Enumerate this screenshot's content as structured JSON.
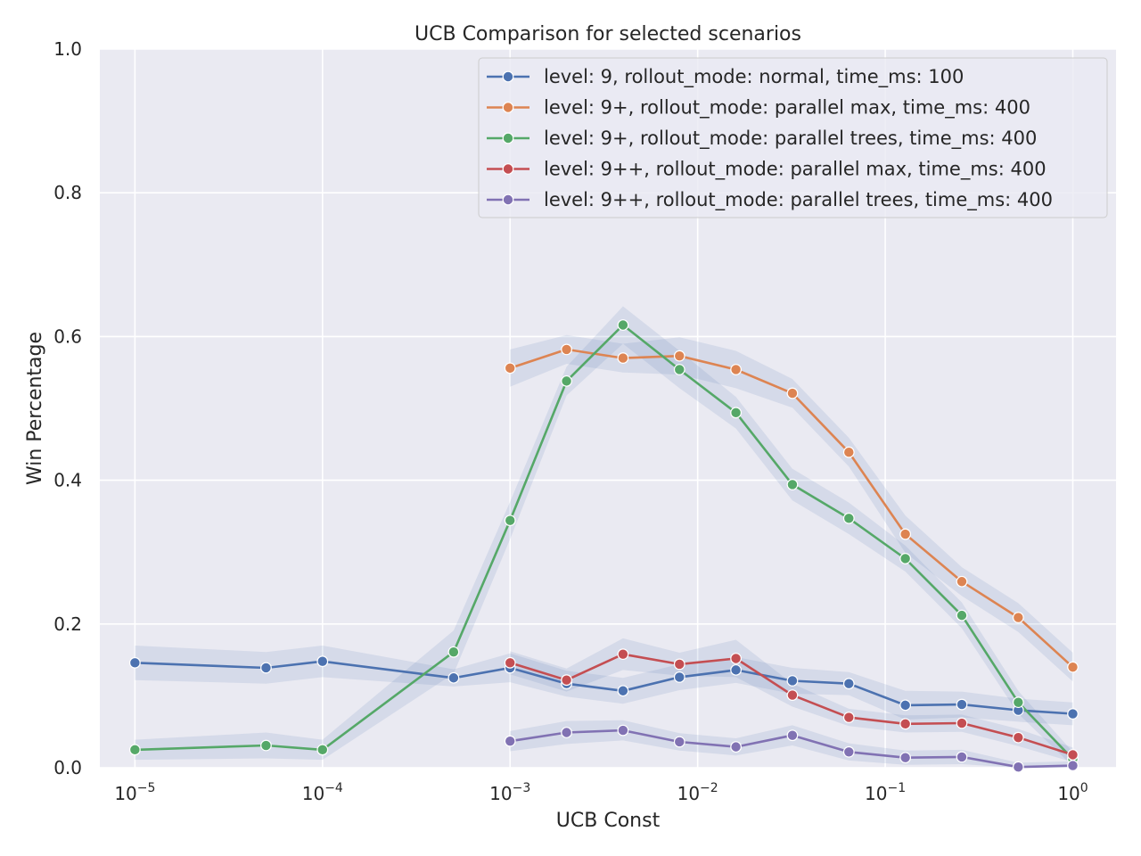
{
  "chart_data": {
    "type": "line",
    "title": "UCB Comparison for selected scenarios",
    "xlabel": "UCB Const",
    "ylabel": "Win Percentage",
    "xscale": "log",
    "xlim": [
      6.5e-06,
      1.7
    ],
    "ylim": [
      0,
      1.0
    ],
    "grid": true,
    "legend_position": "top-right",
    "x_ticks": [
      {
        "value": 1e-05,
        "base": "10",
        "exp": "−5"
      },
      {
        "value": 0.0001,
        "base": "10",
        "exp": "−4"
      },
      {
        "value": 0.001,
        "base": "10",
        "exp": "−3"
      },
      {
        "value": 0.01,
        "base": "10",
        "exp": "−2"
      },
      {
        "value": 0.1,
        "base": "10",
        "exp": "−1"
      },
      {
        "value": 1,
        "base": "10",
        "exp": "0"
      }
    ],
    "y_ticks": [
      {
        "value": 0.0,
        "label": "0.0"
      },
      {
        "value": 0.2,
        "label": "0.2"
      },
      {
        "value": 0.4,
        "label": "0.4"
      },
      {
        "value": 0.6,
        "label": "0.6"
      },
      {
        "value": 0.8,
        "label": "0.8"
      },
      {
        "value": 1.0,
        "label": "1.0"
      }
    ],
    "series": [
      {
        "name": "level: 9, rollout_mode: normal, time_ms: 100",
        "color": "#4c72b0",
        "x": [
          1e-05,
          5e-05,
          0.0001,
          0.0005,
          0.001,
          0.002,
          0.004,
          0.008,
          0.016,
          0.032,
          0.064,
          0.128,
          0.256,
          0.512,
          1.0
        ],
        "y": [
          0.146,
          0.139,
          0.148,
          0.125,
          0.139,
          0.117,
          0.107,
          0.126,
          0.136,
          0.121,
          0.117,
          0.087,
          0.088,
          0.08,
          0.075
        ],
        "ci": [
          0.024,
          0.022,
          0.022,
          0.012,
          0.02,
          0.018,
          0.018,
          0.018,
          0.018,
          0.018,
          0.016,
          0.02,
          0.018,
          0.016,
          0.016
        ]
      },
      {
        "name": "level: 9+, rollout_mode: parallel max, time_ms: 400",
        "color": "#dd8452",
        "x": [
          0.001,
          0.002,
          0.004,
          0.008,
          0.016,
          0.032,
          0.064,
          0.128,
          0.256,
          0.512,
          1.0
        ],
        "y": [
          0.556,
          0.582,
          0.57,
          0.573,
          0.554,
          0.521,
          0.439,
          0.325,
          0.259,
          0.209,
          0.14
        ],
        "ci": [
          0.026,
          0.02,
          0.02,
          0.026,
          0.026,
          0.02,
          0.02,
          0.026,
          0.02,
          0.02,
          0.02
        ]
      },
      {
        "name": "level: 9+, rollout_mode: parallel trees, time_ms: 400",
        "color": "#55a868",
        "x": [
          1e-05,
          5e-05,
          0.0001,
          0.0005,
          0.001,
          0.002,
          0.004,
          0.008,
          0.016,
          0.032,
          0.064,
          0.128,
          0.256,
          0.512,
          1.0
        ],
        "y": [
          0.025,
          0.031,
          0.025,
          0.161,
          0.344,
          0.538,
          0.616,
          0.554,
          0.494,
          0.394,
          0.347,
          0.291,
          0.212,
          0.091,
          0.012
        ],
        "ci": [
          0.014,
          0.018,
          0.014,
          0.03,
          0.026,
          0.02,
          0.026,
          0.026,
          0.022,
          0.022,
          0.022,
          0.018,
          0.018,
          0.016,
          0.01
        ]
      },
      {
        "name": "level: 9++, rollout_mode: parallel max, time_ms: 400",
        "color": "#c44e52",
        "x": [
          0.001,
          0.002,
          0.004,
          0.008,
          0.016,
          0.032,
          0.064,
          0.128,
          0.256,
          0.512,
          1.0
        ],
        "y": [
          0.146,
          0.122,
          0.158,
          0.144,
          0.152,
          0.101,
          0.07,
          0.061,
          0.062,
          0.042,
          0.018
        ],
        "ci": [
          0.016,
          0.016,
          0.022,
          0.016,
          0.026,
          0.016,
          0.012,
          0.012,
          0.012,
          0.012,
          0.01
        ]
      },
      {
        "name": "level: 9++, rollout_mode: parallel trees, time_ms: 400",
        "color": "#8172b3",
        "x": [
          0.001,
          0.002,
          0.004,
          0.008,
          0.016,
          0.032,
          0.064,
          0.128,
          0.256,
          0.512,
          1.0
        ],
        "y": [
          0.037,
          0.049,
          0.052,
          0.036,
          0.029,
          0.045,
          0.022,
          0.014,
          0.015,
          0.001,
          0.003
        ],
        "ci": [
          0.014,
          0.016,
          0.014,
          0.012,
          0.012,
          0.014,
          0.012,
          0.01,
          0.01,
          0.006,
          0.006
        ]
      }
    ]
  }
}
